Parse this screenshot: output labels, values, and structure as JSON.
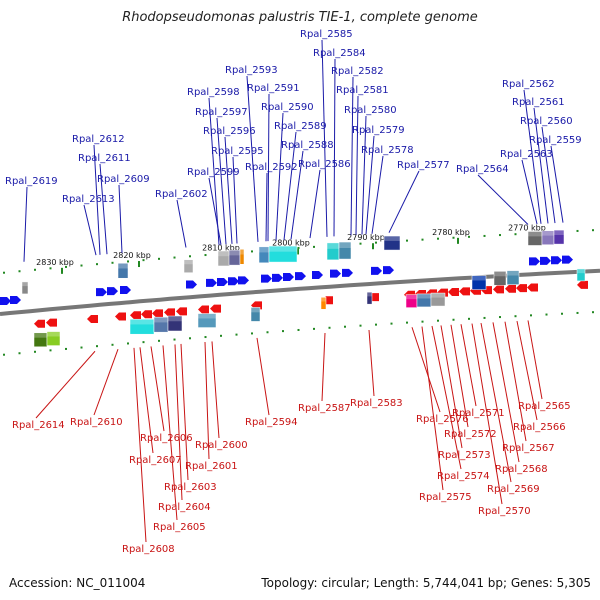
{
  "title": "Rhodopseudomonas palustris TIE-1, complete genome",
  "footer": {
    "accession": "Accession: NC_011004",
    "summary": "Topology: circular; Length: 5,744,041 bp; Genes: 5,305"
  },
  "colors": {
    "forward_gene": "#1111ee",
    "reverse_gene": "#ee1111",
    "forward_label": "#1a1aa8",
    "reverse_label": "#c81414",
    "backbone": "#777777",
    "tick": "#228822"
  },
  "scale_marks": [
    "2830 kbp",
    "2820 kbp",
    "2810 kbp",
    "2800 kbp",
    "2790 kbp",
    "2780 kbp",
    "2770 kbp"
  ],
  "forward_genes": [
    "Rpal_2619",
    "Rpal_2613",
    "Rpal_2612",
    "Rpal_2611",
    "Rpal_2609",
    "Rpal_2602",
    "Rpal_2599",
    "Rpal_2598",
    "Rpal_2597",
    "Rpal_2596",
    "Rpal_2595",
    "Rpal_2593",
    "Rpal_2592",
    "Rpal_2591",
    "Rpal_2590",
    "Rpal_2589",
    "Rpal_2588",
    "Rpal_2586",
    "Rpal_2585",
    "Rpal_2584",
    "Rpal_2582",
    "Rpal_2581",
    "Rpal_2580",
    "Rpal_2579",
    "Rpal_2578",
    "Rpal_2577",
    "Rpal_2564",
    "Rpal_2563",
    "Rpal_2562",
    "Rpal_2561",
    "Rpal_2560",
    "Rpal_2559"
  ],
  "reverse_genes": [
    "Rpal_2614",
    "Rpal_2610",
    "Rpal_2606",
    "Rpal_2607",
    "Rpal_2608",
    "Rpal_2605",
    "Rpal_2604",
    "Rpal_2603",
    "Rpal_2601",
    "Rpal_2600",
    "Rpal_2594",
    "Rpal_2587",
    "Rpal_2583",
    "Rpal_2576",
    "Rpal_2575",
    "Rpal_2574",
    "Rpal_2573",
    "Rpal_2572",
    "Rpal_2571",
    "Rpal_2570",
    "Rpal_2569",
    "Rpal_2568",
    "Rpal_2567",
    "Rpal_2566",
    "Rpal_2565"
  ]
}
